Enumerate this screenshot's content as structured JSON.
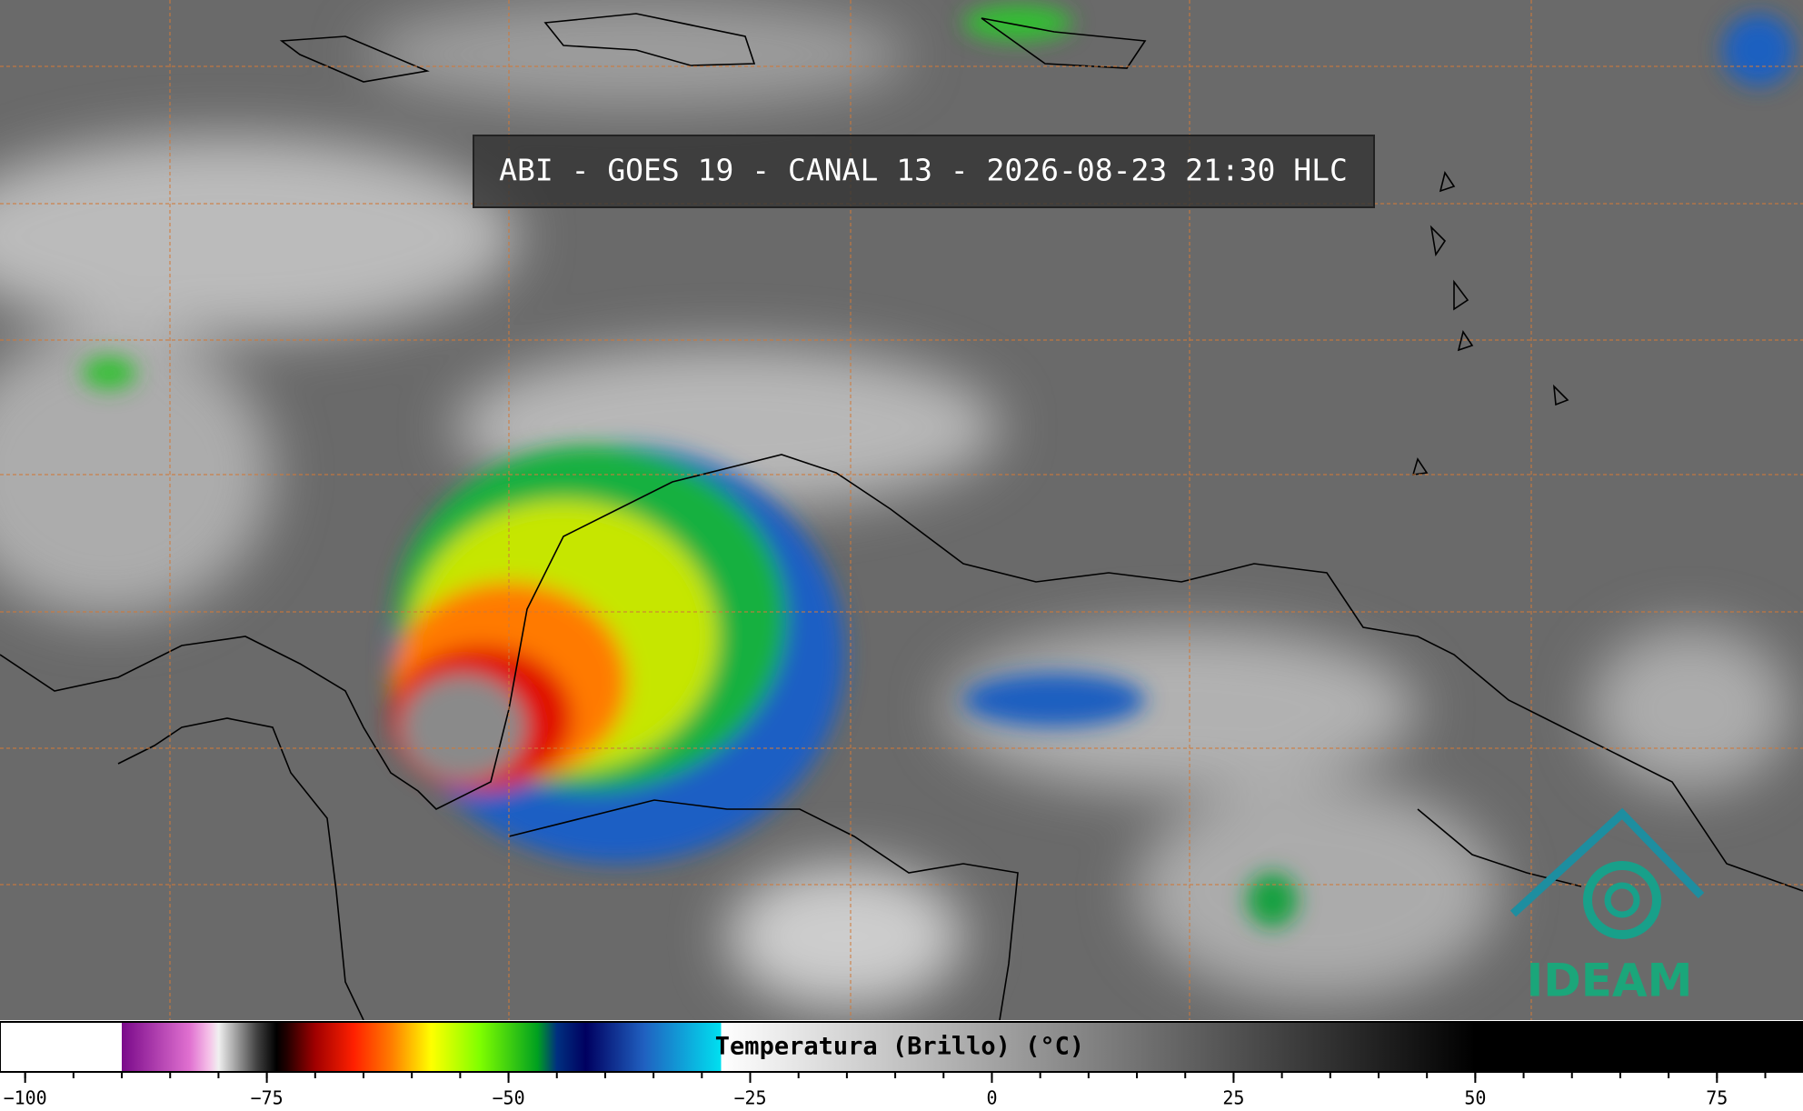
{
  "title": "ABI - GOES 19 - CANAL 13 - 2026-08-23 21:30 HLC",
  "logo": "IDEAM",
  "colorbar": {
    "label": "Temperatura (Brillo) (°C)",
    "lim": [
      -102.6,
      83.9
    ],
    "ticks": [
      {
        "value": -100,
        "label": "−100"
      },
      {
        "value": -75,
        "label": "−75"
      },
      {
        "value": -50,
        "label": "−50"
      },
      {
        "value": -25,
        "label": "−25"
      },
      0,
      25,
      50,
      75
    ],
    "minor_ticks": [
      -100,
      -95,
      -90,
      -85,
      -80,
      -75,
      -70,
      -65,
      -60,
      -55,
      -50,
      -45,
      -40,
      -35,
      -30,
      -25,
      -20,
      -15,
      -10,
      -5,
      0,
      5,
      10,
      15,
      20,
      25,
      30,
      35,
      40,
      45,
      50,
      55,
      60,
      65,
      70,
      75,
      80
    ],
    "stops": [
      [
        -102.6,
        "#ffffff"
      ],
      [
        -90,
        "#ffffff"
      ],
      [
        -90,
        "#7a0a8a"
      ],
      [
        -83,
        "#e070d0"
      ],
      [
        -81,
        "#f5c0e8"
      ],
      [
        -80,
        "#f0f0f0"
      ],
      [
        -76,
        "#404040"
      ],
      [
        -74,
        "#000000"
      ],
      [
        -73,
        "#200000"
      ],
      [
        -70,
        "#a00000"
      ],
      [
        -66,
        "#ff2000"
      ],
      [
        -62,
        "#ff8000"
      ],
      [
        -58,
        "#ffff00"
      ],
      [
        -53,
        "#80ff00"
      ],
      [
        -47,
        "#00a020"
      ],
      [
        -45,
        "#003080"
      ],
      [
        -42,
        "#000060"
      ],
      [
        -36,
        "#2060c0"
      ],
      [
        -28,
        "#00e0f0"
      ],
      [
        -28,
        "#ffffff"
      ],
      [
        50,
        "#000000"
      ],
      [
        83.9,
        "#000000"
      ]
    ]
  }
}
